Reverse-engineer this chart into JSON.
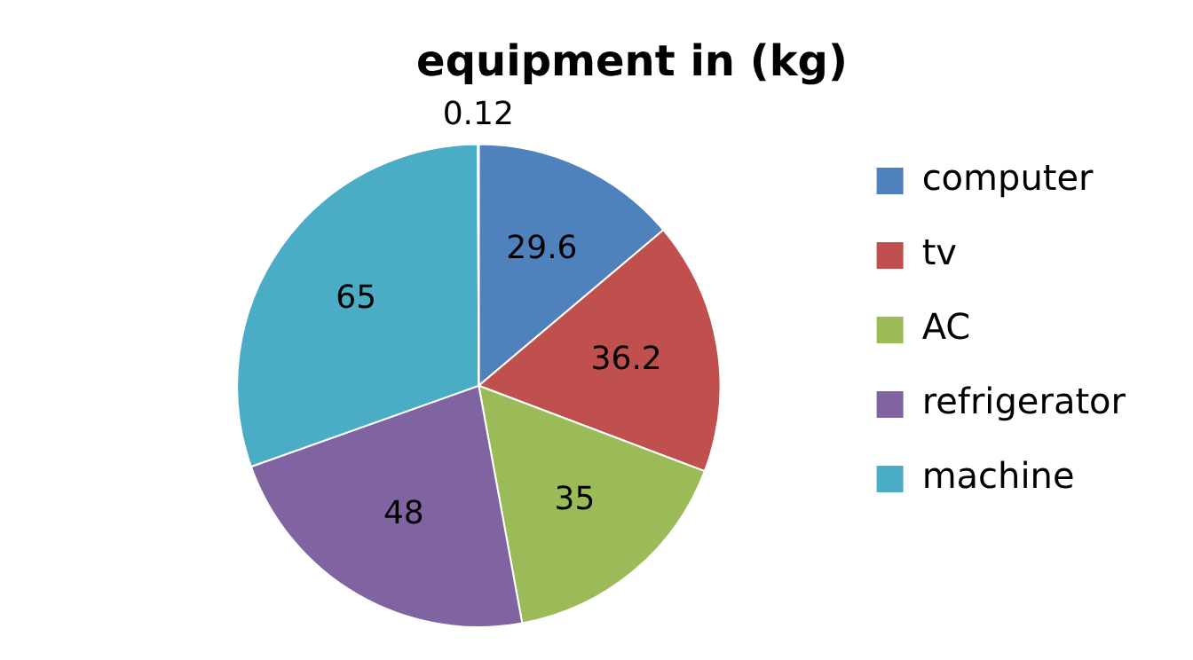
{
  "chart_data": {
    "type": "pie",
    "title": "equipment in (kg)",
    "categories": [
      "computer",
      "tv",
      "AC",
      "refrigerator",
      "machine",
      null
    ],
    "values": [
      29.6,
      36.2,
      35,
      48,
      65,
      0.12
    ],
    "colors": [
      "#4f81bd",
      "#c0504d",
      "#9bbb59",
      "#8064a2",
      "#4bacc6",
      "#f79646"
    ],
    "data_labels": true,
    "legend": "right"
  }
}
